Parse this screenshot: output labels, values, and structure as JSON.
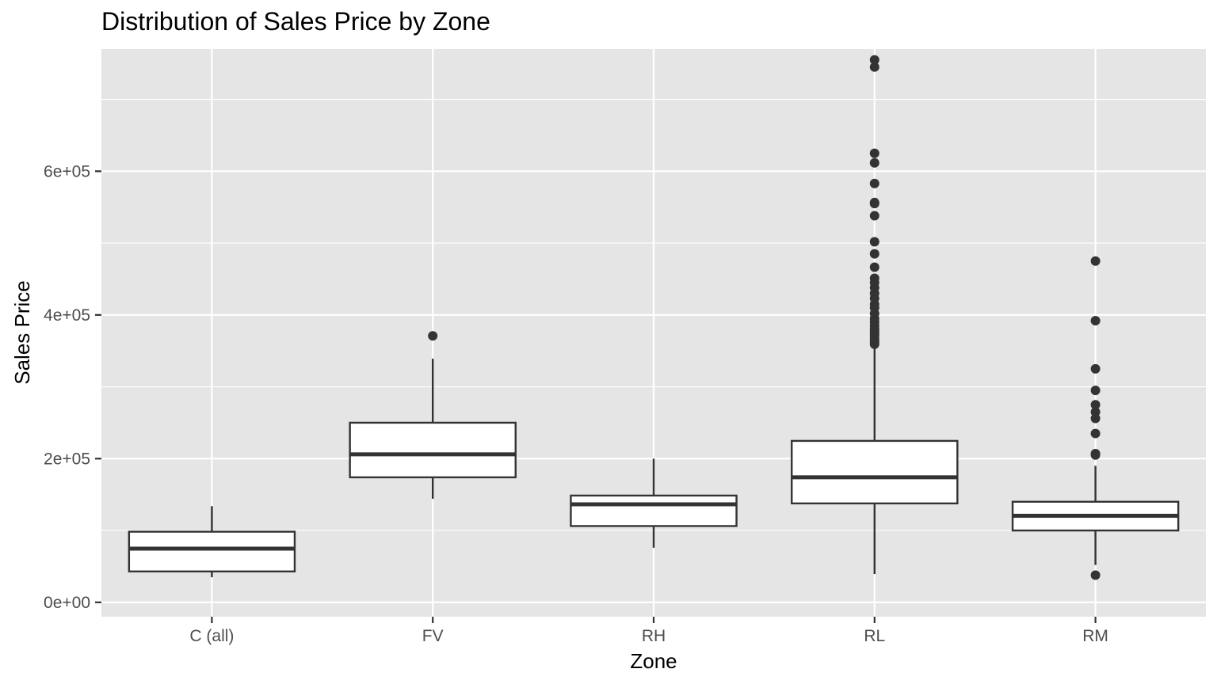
{
  "chart_data": {
    "type": "boxplot",
    "title": "Distribution of Sales Price by Zone",
    "xlabel": "Zone",
    "ylabel": "Sales Price",
    "categories": [
      "C (all)",
      "FV",
      "RH",
      "RL",
      "RM"
    ],
    "ylim": [
      -20000,
      770000
    ],
    "yticks": [
      0,
      200000,
      400000,
      600000
    ],
    "ytick_labels": [
      "0e+00",
      "2e+05",
      "4e+05",
      "6e+05"
    ],
    "grid": true,
    "colors": {
      "panel": "#e5e5e5",
      "grid": "#ffffff",
      "box_fill": "#ffffff",
      "stroke": "#333333",
      "point": "#333333"
    },
    "boxes": [
      {
        "category": "C (all)",
        "lower_whisker": 34900,
        "q1": 43000,
        "median": 74700,
        "q3": 98300,
        "upper_whisker": 133900,
        "outliers": []
      },
      {
        "category": "FV",
        "lower_whisker": 144200,
        "q1": 174000,
        "median": 205950,
        "q3": 250000,
        "upper_whisker": 339000,
        "outliers": [
          370878
        ]
      },
      {
        "category": "RH",
        "lower_whisker": 76000,
        "q1": 106200,
        "median": 136500,
        "q3": 148600,
        "upper_whisker": 200000,
        "outliers": []
      },
      {
        "category": "RL",
        "lower_whisker": 39300,
        "q1": 137700,
        "median": 174000,
        "q3": 224700,
        "upper_whisker": 354000,
        "outliers": [
          359100,
          362000,
          365000,
          368000,
          372000,
          375000,
          378500,
          381000,
          385000,
          390000,
          395000,
          402000,
          410000,
          415000,
          423000,
          430000,
          438000,
          445000,
          451000,
          466500,
          485000,
          501837,
          538000,
          555000,
          556581,
          582933,
          611657,
          625000,
          745000,
          755000
        ]
      },
      {
        "category": "RM",
        "lower_whisker": 52000,
        "q1": 100000,
        "median": 120500,
        "q3": 140000,
        "upper_whisker": 190000,
        "outliers": [
          37900,
          205000,
          207000,
          235000,
          256000,
          265000,
          275000,
          295000,
          325000,
          392000,
          475000
        ]
      }
    ]
  }
}
